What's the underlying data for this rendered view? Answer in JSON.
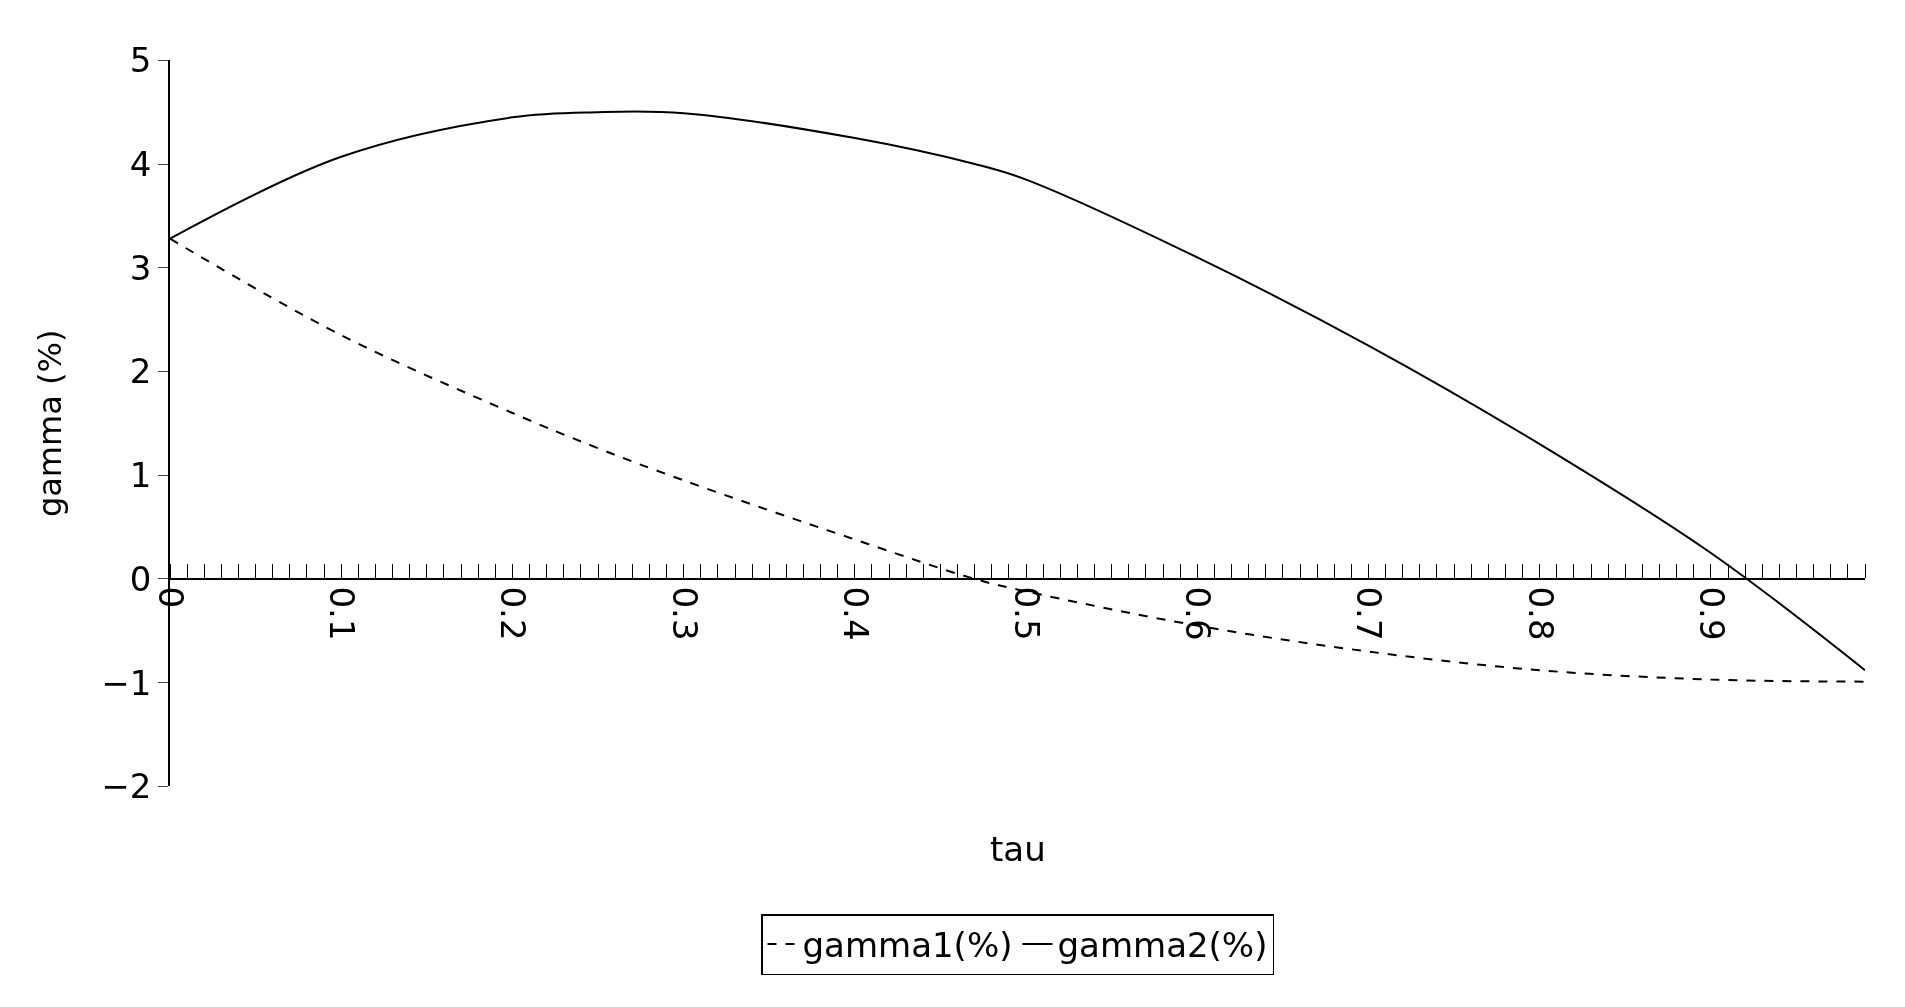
{
  "chart_data": {
    "type": "line",
    "xlabel": "tau",
    "ylabel": "gamma (%)",
    "x": [
      0,
      0.1,
      0.2,
      0.25,
      0.3,
      0.4,
      0.47,
      0.5,
      0.6,
      0.7,
      0.8,
      0.9,
      0.99
    ],
    "series": [
      {
        "name": "gamma1(%)",
        "color": "#000000",
        "line_style": "dashed",
        "values": [
          3.28,
          2.35,
          1.6,
          1.26,
          0.95,
          0.38,
          0,
          -0.12,
          -0.45,
          -0.7,
          -0.88,
          -0.97,
          -0.99
        ]
      },
      {
        "name": "gamma2(%)",
        "color": "#000000",
        "line_style": "solid",
        "values": [
          3.28,
          4.07,
          4.45,
          4.5,
          4.49,
          4.25,
          4.0,
          3.85,
          3.1,
          2.25,
          1.3,
          0.25,
          -0.88
        ]
      }
    ],
    "xlim": [
      0,
      0.99
    ],
    "xticks": [
      0,
      0.1,
      0.2,
      0.3,
      0.4,
      0.5,
      0.6,
      0.7,
      0.8,
      0.9
    ],
    "ylim": [
      -2,
      5
    ],
    "yticks": [
      -2,
      -1,
      0,
      1,
      2,
      3,
      4,
      5
    ],
    "legend": "bottom",
    "marker": "none"
  }
}
